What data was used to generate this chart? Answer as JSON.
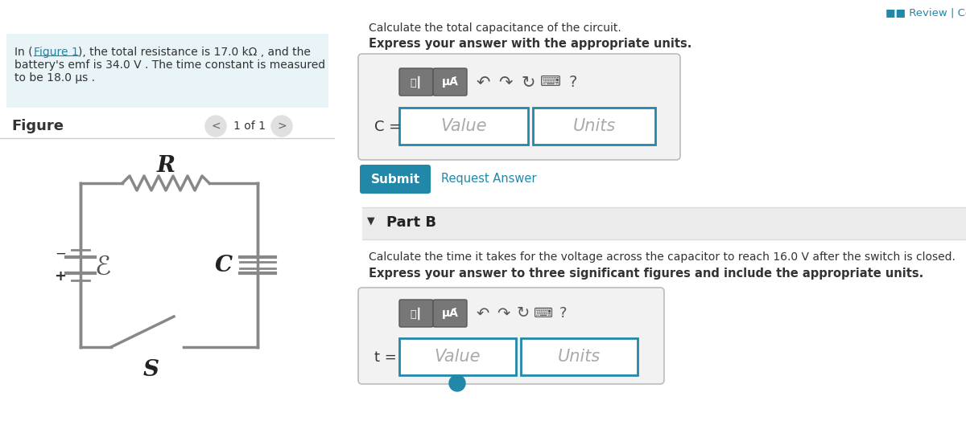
{
  "bg_color": "#ffffff",
  "left_panel_bg": "#e8f4f8",
  "circuit_color": "#888888",
  "submit_bg": "#2288aa",
  "input_border": "#2288aa",
  "input_bg": "#ffffff",
  "link_color": "#2288aa",
  "text_color": "#333333",
  "part_b_bg": "#f0f0f0",
  "problem_line1": "In (Figure 1), the total resistance is 17.0 kΩ , and the",
  "problem_line2": "battery's emf is 34.0 V . The time constant is measured",
  "problem_line3": "to be 18.0 μs .",
  "figure_label": "Figure",
  "nav_text": "1 of 1",
  "part_a_intro": "Calculate the total capacitance of the circuit.",
  "part_a_bold": "Express your answer with the appropriate units.",
  "c_label": "C =",
  "value_placeholder": "Value",
  "units_placeholder": "Units",
  "submit_text": "Submit",
  "request_answer_text": "Request Answer",
  "part_b_label": "Part B",
  "part_b_intro": "Calculate the time it takes for the voltage across the capacitor to reach 16.0 V after the switch is closed.",
  "part_b_bold": "Express your answer to three significant figures and include the appropriate units.",
  "t_label": "t =",
  "review_text": "■■ Review | Consta"
}
